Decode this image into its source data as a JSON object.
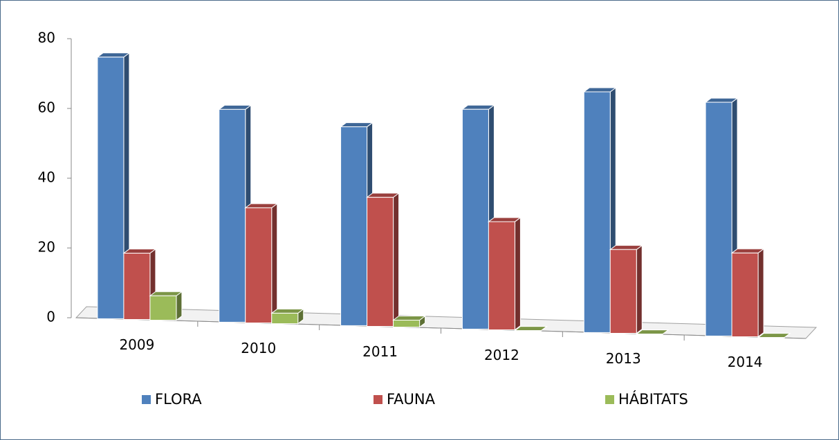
{
  "chart_data": {
    "type": "bar3d",
    "categories": [
      "2009",
      "2010",
      "2011",
      "2012",
      "2013",
      "2014"
    ],
    "series": [
      {
        "name": "FLORA",
        "color": "#4f81bd",
        "values": [
          75,
          61,
          57,
          63,
          69,
          67
        ]
      },
      {
        "name": "FAUNA",
        "color": "#c0504d",
        "values": [
          19,
          33,
          37,
          31,
          24,
          24
        ]
      },
      {
        "name": "HÁBITATS",
        "color": "#9bbb59",
        "values": [
          7,
          3,
          2,
          0,
          0,
          0
        ]
      }
    ],
    "ylim": [
      0,
      80
    ],
    "yticks": [
      0,
      20,
      40,
      60,
      80
    ],
    "legend": "bottom"
  }
}
